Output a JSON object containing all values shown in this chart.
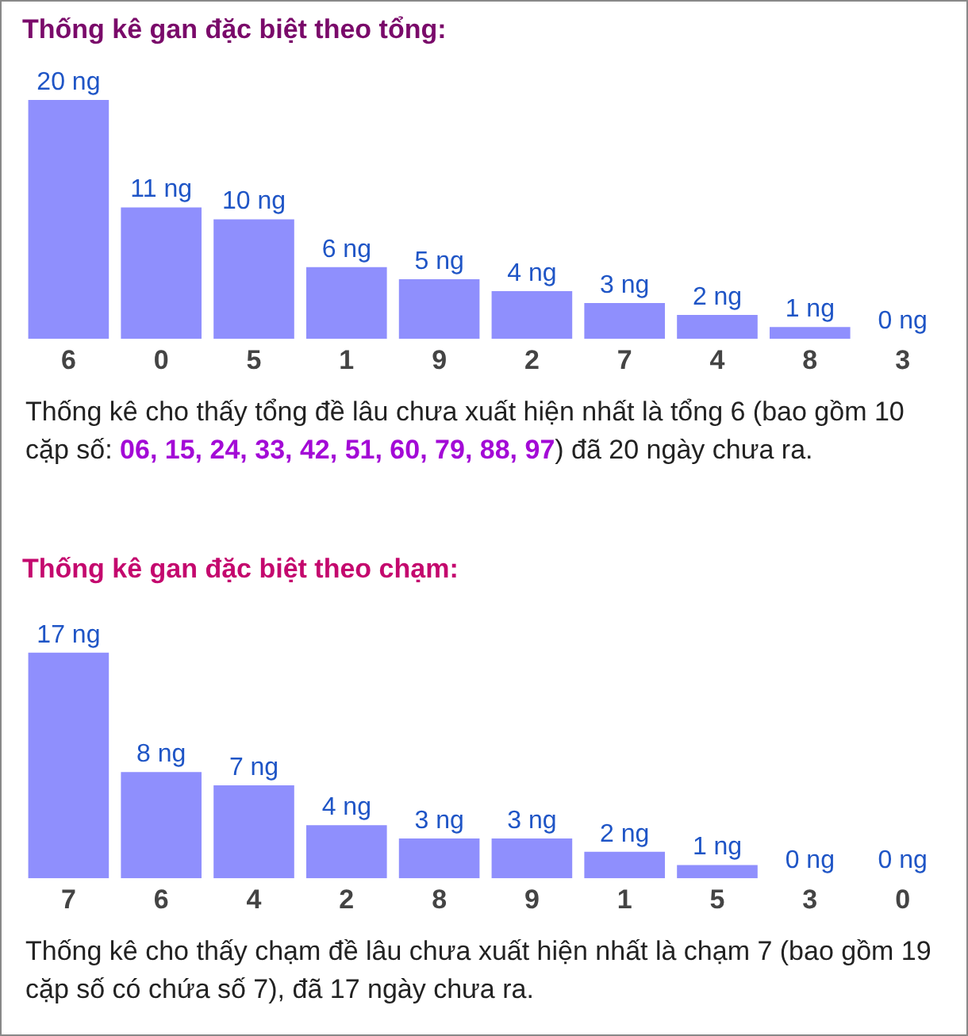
{
  "chart_data": [
    {
      "type": "bar",
      "title": "Thống kê gan đặc biệt theo tổng:",
      "categories": [
        "6",
        "0",
        "5",
        "1",
        "9",
        "2",
        "7",
        "4",
        "8",
        "3"
      ],
      "values": [
        20,
        11,
        10,
        6,
        5,
        4,
        3,
        2,
        1,
        0
      ],
      "color": "#8f8ffd",
      "value_labels": [
        "20 ng",
        "11 ng",
        "10 ng",
        "6 ng",
        "5 ng",
        "4 ng",
        "3 ng",
        "2 ng",
        "1 ng",
        "0 ng"
      ],
      "tick_labels": "x",
      "annotations": [
        "Thống kê cho thấy tổng đề lâu chưa xuất hiện nhất là tổng 6 (bao gồm 10 cặp số: ",
        "06, 15, 24, 33, 42, 51, 60, 79, 88, 97",
        ") đã 20 ngày chưa ra."
      ]
    },
    {
      "type": "bar",
      "title": "Thống kê gan đặc biệt theo chạm:",
      "categories": [
        "7",
        "6",
        "4",
        "2",
        "8",
        "9",
        "1",
        "5",
        "3",
        "0"
      ],
      "values": [
        17,
        8,
        7,
        4,
        3,
        3,
        2,
        1,
        0,
        0
      ],
      "color": "#8f8ffd",
      "value_labels": [
        "17 ng",
        "8 ng",
        "7 ng",
        "4 ng",
        "3 ng",
        "3 ng",
        "2 ng",
        "1 ng",
        "0 ng",
        "0 ng"
      ],
      "tick_labels": "x",
      "annotations": [
        "Thống kê cho thấy chạm đề lâu chưa xuất hiện nhất là chạm 7 (bao gồm 19 cặp số có chứa số 7), đã 17 ngày chưa ra."
      ]
    }
  ]
}
